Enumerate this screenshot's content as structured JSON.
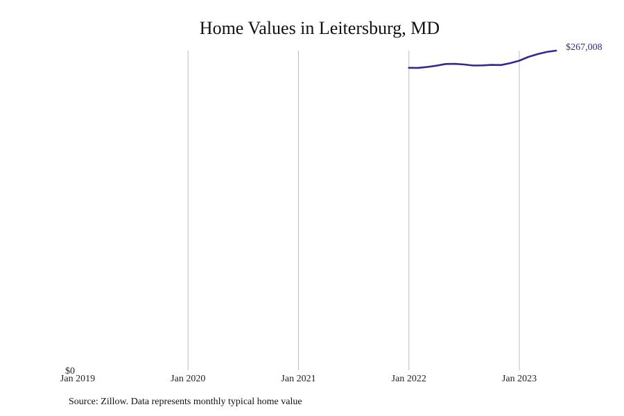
{
  "chart_data": {
    "type": "line",
    "title": "Home Values in Leitersburg, MD",
    "xlabel": "",
    "ylabel": "",
    "x_ticks": [
      "Jan 2019",
      "Jan 2020",
      "Jan 2021",
      "Jan 2022",
      "Jan 2023"
    ],
    "y_ticks": [
      "$0"
    ],
    "ylim": [
      0,
      267008
    ],
    "xlim": [
      "2019-01",
      "2023-09"
    ],
    "grid": "vertical",
    "line_color": "#2e2a8f",
    "end_label": "$267,008",
    "series": [
      {
        "x": [
          "2022-01",
          "2022-02",
          "2022-03",
          "2022-04",
          "2022-05",
          "2022-06",
          "2022-07",
          "2022-08",
          "2022-09",
          "2022-10",
          "2022-11",
          "2022-12",
          "2023-01",
          "2023-02",
          "2023-03",
          "2023-04",
          "2023-05"
        ],
        "values": [
          252600,
          252500,
          253300,
          254400,
          255800,
          255900,
          255400,
          254500,
          254600,
          255000,
          254900,
          256500,
          258600,
          261800,
          264100,
          265900,
          267008
        ]
      }
    ]
  },
  "source": "Source: Zillow. Data represents monthly typical home value"
}
